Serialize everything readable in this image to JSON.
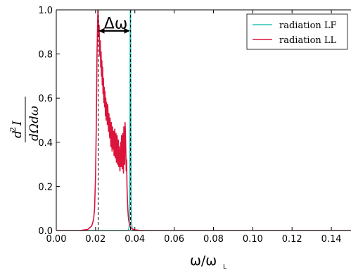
{
  "chart_data": {
    "type": "line",
    "xlabel_main": "ω/ω",
    "xlabel_sub": "L",
    "ylabel_numerator_base": "d",
    "ylabel_numerator_exp": "2",
    "ylabel_numerator_var": "I",
    "ylabel_denominator": "dΩdω",
    "xlim": [
      0.0,
      0.15
    ],
    "ylim": [
      0.0,
      1.0
    ],
    "x_ticks": [
      0.0,
      0.02,
      0.04,
      0.06,
      0.08,
      0.1,
      0.12,
      0.14
    ],
    "x_tick_labels": [
      "0.00",
      "0.02",
      "0.04",
      "0.06",
      "0.08",
      "0.10",
      "0.12",
      "0.14"
    ],
    "y_ticks": [
      0.0,
      0.2,
      0.4,
      0.6,
      0.8,
      1.0
    ],
    "y_tick_labels": [
      "0.0",
      "0.2",
      "0.4",
      "0.6",
      "0.8",
      "1.0"
    ],
    "legend_position": "top-right",
    "annotation": {
      "text": "Δω",
      "arrow_from": 0.0213,
      "arrow_to": 0.0378,
      "arrow_y": 0.905,
      "text_y": 0.935
    },
    "vlines": [
      0.0213,
      0.0378
    ],
    "series": [
      {
        "name": "radiation LF",
        "color": "#2ec4b6",
        "x": [
          0.0,
          0.0365,
          0.0368,
          0.037,
          0.0372,
          0.0373,
          0.0374,
          0.0375,
          0.0376,
          0.0377,
          0.0378,
          0.0379,
          0.038,
          0.0381,
          0.0383,
          0.0386,
          0.039,
          0.15
        ],
        "y": [
          0.0,
          0.0,
          0.005,
          0.01,
          0.03,
          0.08,
          0.25,
          0.55,
          0.85,
          1.0,
          1.0,
          0.8,
          0.45,
          0.15,
          0.04,
          0.01,
          0.0,
          0.0
        ]
      },
      {
        "name": "radiation LL",
        "color": "#dc143c",
        "x": [
          0.0,
          0.012,
          0.016,
          0.018,
          0.019,
          0.0195,
          0.02,
          0.0204,
          0.0207,
          0.021,
          0.0212,
          0.0214,
          0.0216,
          0.0218,
          0.022,
          0.0222,
          0.0224,
          0.0226,
          0.0228,
          0.023,
          0.0232,
          0.0234,
          0.0236,
          0.0238,
          0.024,
          0.0242,
          0.0244,
          0.0246,
          0.0248,
          0.025,
          0.0252,
          0.0254,
          0.0256,
          0.0258,
          0.026,
          0.0262,
          0.0264,
          0.0266,
          0.0268,
          0.027,
          0.0272,
          0.0274,
          0.0276,
          0.0278,
          0.028,
          0.0282,
          0.0284,
          0.0286,
          0.0288,
          0.029,
          0.0292,
          0.0294,
          0.0296,
          0.0298,
          0.03,
          0.0302,
          0.0304,
          0.0306,
          0.0308,
          0.031,
          0.0312,
          0.0314,
          0.0316,
          0.0318,
          0.032,
          0.0322,
          0.0324,
          0.0326,
          0.0328,
          0.033,
          0.0332,
          0.0334,
          0.0336,
          0.0338,
          0.034,
          0.0342,
          0.0344,
          0.0346,
          0.0348,
          0.035,
          0.0352,
          0.0354,
          0.0356,
          0.0358,
          0.036,
          0.0362,
          0.0364,
          0.0366,
          0.0368,
          0.037,
          0.0372,
          0.0374,
          0.0376,
          0.0378,
          0.038,
          0.0383,
          0.0387,
          0.0392,
          0.04,
          0.042,
          0.046,
          0.052,
          0.15
        ],
        "y": [
          0.0,
          0.0,
          0.005,
          0.02,
          0.05,
          0.1,
          0.25,
          0.5,
          0.78,
          0.93,
          1.0,
          0.96,
          0.88,
          0.93,
          0.84,
          0.79,
          0.86,
          0.74,
          0.81,
          0.7,
          0.77,
          0.66,
          0.74,
          0.62,
          0.69,
          0.58,
          0.65,
          0.56,
          0.63,
          0.52,
          0.6,
          0.5,
          0.58,
          0.55,
          0.48,
          0.57,
          0.52,
          0.45,
          0.53,
          0.47,
          0.42,
          0.51,
          0.44,
          0.38,
          0.49,
          0.42,
          0.36,
          0.47,
          0.4,
          0.37,
          0.45,
          0.34,
          0.41,
          0.46,
          0.33,
          0.39,
          0.44,
          0.31,
          0.37,
          0.43,
          0.3,
          0.36,
          0.41,
          0.29,
          0.38,
          0.33,
          0.27,
          0.35,
          0.4,
          0.29,
          0.43,
          0.36,
          0.28,
          0.44,
          0.33,
          0.26,
          0.47,
          0.4,
          0.3,
          0.49,
          0.44,
          0.36,
          0.27,
          0.32,
          0.2,
          0.14,
          0.1,
          0.07,
          0.05,
          0.04,
          0.03,
          0.025,
          0.02,
          0.015,
          0.012,
          0.01,
          0.007,
          0.005,
          0.003,
          0.001,
          0.0,
          0.0,
          0.0
        ]
      }
    ]
  }
}
